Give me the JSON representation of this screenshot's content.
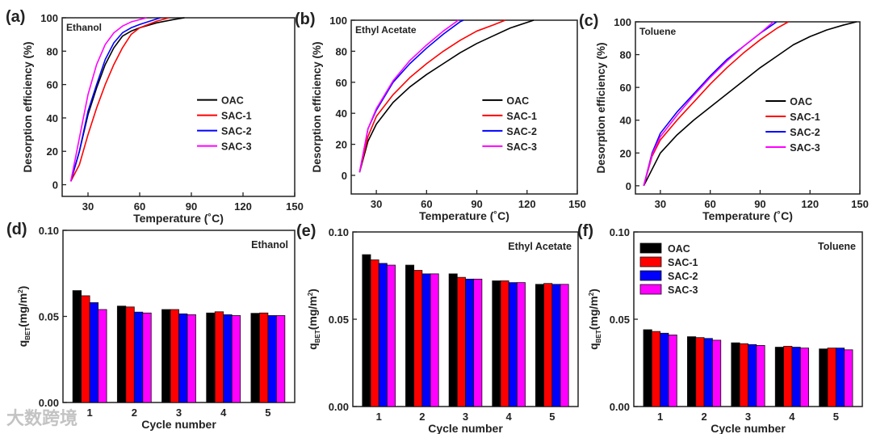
{
  "colors": {
    "OAC": "#000000",
    "SAC-1": "#ff0000",
    "SAC-2": "#0000ff",
    "SAC-3": "#ff00ff"
  },
  "watermark": "大数跨境",
  "chart_data": [
    {
      "panel": "(a)",
      "type": "line",
      "annotation": "Ethanol",
      "xlabel": "Temperature (˚C)",
      "ylabel": "Desorption efficiency (%)",
      "xlim": [
        15,
        150
      ],
      "ylim": [
        -7,
        100
      ],
      "xticks": [
        30,
        60,
        90,
        120,
        150
      ],
      "yticks": [
        0,
        20,
        40,
        60,
        80,
        100
      ],
      "legend": "center-right",
      "series": [
        {
          "name": "OAC",
          "points": [
            [
              20,
              2
            ],
            [
              25,
              20
            ],
            [
              30,
              42
            ],
            [
              35,
              58
            ],
            [
              40,
              72
            ],
            [
              45,
              82
            ],
            [
              50,
              89
            ],
            [
              55,
              92
            ],
            [
              60,
              94
            ],
            [
              70,
              97
            ],
            [
              80,
              99
            ],
            [
              86,
              100
            ]
          ]
        },
        {
          "name": "SAC-1",
          "points": [
            [
              20,
              2
            ],
            [
              25,
              12
            ],
            [
              30,
              30
            ],
            [
              35,
              46
            ],
            [
              40,
              60
            ],
            [
              45,
              72
            ],
            [
              50,
              82
            ],
            [
              55,
              90
            ],
            [
              60,
              94
            ],
            [
              70,
              98
            ],
            [
              77,
              100
            ]
          ]
        },
        {
          "name": "SAC-2",
          "points": [
            [
              20,
              2
            ],
            [
              25,
              20
            ],
            [
              30,
              44
            ],
            [
              35,
              60
            ],
            [
              40,
              75
            ],
            [
              45,
              85
            ],
            [
              50,
              91
            ],
            [
              55,
              94
            ],
            [
              60,
              96
            ],
            [
              72,
              100
            ]
          ]
        },
        {
          "name": "SAC-3",
          "points": [
            [
              20,
              2
            ],
            [
              25,
              28
            ],
            [
              30,
              54
            ],
            [
              35,
              72
            ],
            [
              40,
              84
            ],
            [
              45,
              91
            ],
            [
              50,
              95
            ],
            [
              55,
              97.5
            ],
            [
              64,
              100
            ]
          ]
        }
      ]
    },
    {
      "panel": "(b)",
      "type": "line",
      "annotation": "Ethyl Acetate",
      "xlabel": "Temperature (˚C)",
      "ylabel": "Desorption efficiency (%)",
      "xlim": [
        15,
        150
      ],
      "ylim": [
        -12,
        100
      ],
      "xticks": [
        30,
        60,
        90,
        120,
        150
      ],
      "yticks": [
        0,
        20,
        40,
        60,
        80,
        100
      ],
      "legend": "center-right",
      "series": [
        {
          "name": "OAC",
          "points": [
            [
              20,
              2
            ],
            [
              25,
              22
            ],
            [
              30,
              33
            ],
            [
              40,
              47
            ],
            [
              50,
              57
            ],
            [
              60,
              65
            ],
            [
              70,
              72
            ],
            [
              80,
              79
            ],
            [
              90,
              85
            ],
            [
              100,
              90
            ],
            [
              110,
              95
            ],
            [
              124,
              100
            ]
          ]
        },
        {
          "name": "SAC-1",
          "points": [
            [
              20,
              2
            ],
            [
              25,
              25
            ],
            [
              30,
              38
            ],
            [
              40,
              52
            ],
            [
              50,
              63
            ],
            [
              60,
              72
            ],
            [
              70,
              80
            ],
            [
              80,
              87
            ],
            [
              90,
              93
            ],
            [
              100,
              97
            ],
            [
              107,
              100
            ]
          ]
        },
        {
          "name": "SAC-2",
          "points": [
            [
              20,
              2
            ],
            [
              25,
              30
            ],
            [
              30,
              42
            ],
            [
              40,
              60
            ],
            [
              50,
              72
            ],
            [
              60,
              82
            ],
            [
              70,
              91
            ],
            [
              80,
              99
            ],
            [
              82,
              100
            ]
          ]
        },
        {
          "name": "SAC-3",
          "points": [
            [
              20,
              2
            ],
            [
              25,
              30
            ],
            [
              30,
              43
            ],
            [
              40,
              61
            ],
            [
              50,
              74
            ],
            [
              60,
              84
            ],
            [
              70,
              93
            ],
            [
              79,
              100
            ]
          ]
        }
      ]
    },
    {
      "panel": "(c)",
      "type": "line",
      "annotation": "Toluene",
      "xlabel": "Temperature (˚C)",
      "ylabel": "Desorption efficiency (%)",
      "xlim": [
        15,
        150
      ],
      "ylim": [
        -5,
        100
      ],
      "xticks": [
        30,
        60,
        90,
        120,
        150
      ],
      "yticks": [
        0,
        20,
        40,
        60,
        80,
        100
      ],
      "legend": "center-right",
      "series": [
        {
          "name": "OAC",
          "points": [
            [
              20,
              0
            ],
            [
              25,
              10
            ],
            [
              30,
              20
            ],
            [
              40,
              31
            ],
            [
              50,
              40
            ],
            [
              60,
              48
            ],
            [
              70,
              56
            ],
            [
              80,
              64
            ],
            [
              90,
              72
            ],
            [
              100,
              79
            ],
            [
              110,
              86
            ],
            [
              120,
              91
            ],
            [
              130,
              95
            ],
            [
              140,
              98
            ],
            [
              148,
              100
            ]
          ]
        },
        {
          "name": "SAC-1",
          "points": [
            [
              20,
              0
            ],
            [
              25,
              18
            ],
            [
              30,
              28
            ],
            [
              40,
              40
            ],
            [
              50,
              51
            ],
            [
              60,
              62
            ],
            [
              70,
              72
            ],
            [
              80,
              81
            ],
            [
              90,
              89
            ],
            [
              100,
              96
            ],
            [
              107,
              100
            ]
          ]
        },
        {
          "name": "SAC-2",
          "points": [
            [
              20,
              0
            ],
            [
              25,
              20
            ],
            [
              30,
              32
            ],
            [
              40,
              45
            ],
            [
              50,
              56
            ],
            [
              60,
              67
            ],
            [
              70,
              77
            ],
            [
              80,
              85
            ],
            [
              90,
              93
            ],
            [
              100,
              100
            ]
          ]
        },
        {
          "name": "SAC-3",
          "points": [
            [
              20,
              0
            ],
            [
              25,
              19
            ],
            [
              30,
              30
            ],
            [
              40,
              43
            ],
            [
              50,
              55
            ],
            [
              60,
              66
            ],
            [
              70,
              76
            ],
            [
              80,
              85
            ],
            [
              90,
              93
            ],
            [
              98,
              100
            ]
          ]
        }
      ]
    },
    {
      "panel": "(d)",
      "type": "bar",
      "annotation": "Ethanol",
      "xlabel": "Cycle number",
      "ylabel": "qBET(mg/m2)",
      "ylim": [
        0,
        0.1
      ],
      "yticks": [
        "0.00",
        "0.05",
        "0.10"
      ],
      "categories": [
        "1",
        "2",
        "3",
        "4",
        "5"
      ],
      "legend": "none",
      "series": [
        {
          "name": "OAC",
          "values": [
            0.065,
            0.056,
            0.054,
            0.052,
            0.0518
          ]
        },
        {
          "name": "SAC-1",
          "values": [
            0.062,
            0.0555,
            0.054,
            0.0527,
            0.052
          ]
        },
        {
          "name": "SAC-2",
          "values": [
            0.058,
            0.0525,
            0.0515,
            0.051,
            0.0505
          ]
        },
        {
          "name": "SAC-3",
          "values": [
            0.054,
            0.052,
            0.051,
            0.0505,
            0.0505
          ]
        }
      ]
    },
    {
      "panel": "(e)",
      "type": "bar",
      "annotation": "Ethyl  Acetate",
      "xlabel": "Cycle number",
      "ylabel": "qBET(mg/m2)",
      "ylim": [
        0,
        0.1
      ],
      "yticks": [
        "0.00",
        "0.05",
        "0.10"
      ],
      "categories": [
        "1",
        "2",
        "3",
        "4",
        "5"
      ],
      "legend": "none",
      "series": [
        {
          "name": "OAC",
          "values": [
            0.087,
            0.081,
            0.076,
            0.072,
            0.07
          ]
        },
        {
          "name": "SAC-1",
          "values": [
            0.084,
            0.078,
            0.074,
            0.072,
            0.0705
          ]
        },
        {
          "name": "SAC-2",
          "values": [
            0.082,
            0.076,
            0.073,
            0.071,
            0.07
          ]
        },
        {
          "name": "SAC-3",
          "values": [
            0.081,
            0.076,
            0.073,
            0.071,
            0.07
          ]
        }
      ]
    },
    {
      "panel": "(f)",
      "type": "bar",
      "annotation": "Toluene",
      "xlabel": "Cycle number",
      "ylabel": "qBET(mg/m2)",
      "ylim": [
        0,
        0.1
      ],
      "yticks": [
        "0.00",
        "0.05",
        "0.10"
      ],
      "categories": [
        "1",
        "2",
        "3",
        "4",
        "5"
      ],
      "legend": "top-left",
      "series": [
        {
          "name": "OAC",
          "values": [
            0.044,
            0.04,
            0.0365,
            0.034,
            0.033
          ]
        },
        {
          "name": "SAC-1",
          "values": [
            0.043,
            0.0395,
            0.036,
            0.0345,
            0.0335
          ]
        },
        {
          "name": "SAC-2",
          "values": [
            0.042,
            0.039,
            0.0355,
            0.034,
            0.0335
          ]
        },
        {
          "name": "SAC-3",
          "values": [
            0.041,
            0.038,
            0.035,
            0.0335,
            0.0325
          ]
        }
      ]
    }
  ]
}
